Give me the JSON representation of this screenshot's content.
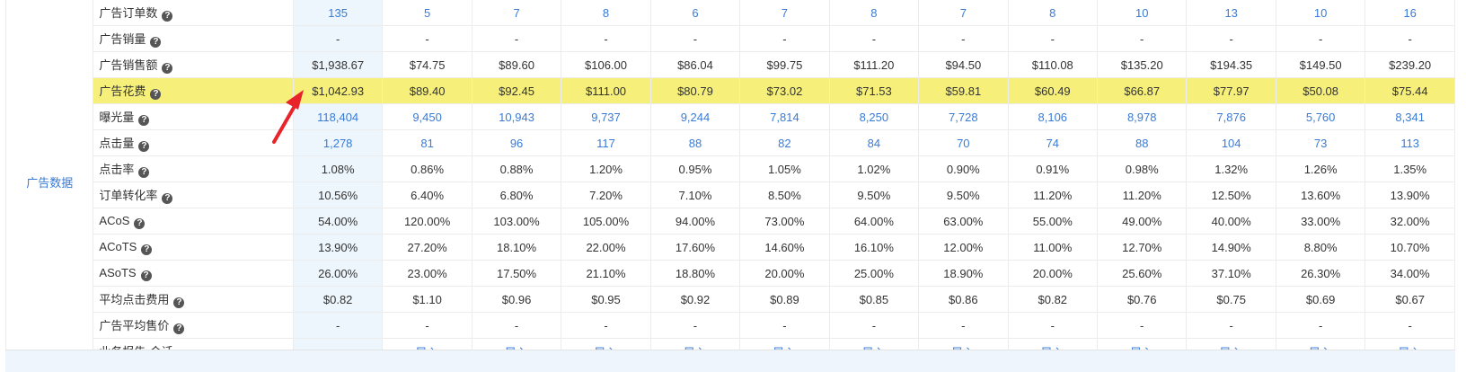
{
  "category": "广告数据",
  "rows": [
    {
      "label": "广告订单数",
      "style": "blue",
      "values": [
        "135",
        "5",
        "7",
        "8",
        "6",
        "7",
        "8",
        "7",
        "8",
        "10",
        "13",
        "10",
        "16"
      ]
    },
    {
      "label": "广告销量",
      "style": "plain",
      "values": [
        "-",
        "-",
        "-",
        "-",
        "-",
        "-",
        "-",
        "-",
        "-",
        "-",
        "-",
        "-",
        "-"
      ]
    },
    {
      "label": "广告销售额",
      "style": "plain",
      "values": [
        "$1,938.67",
        "$74.75",
        "$89.60",
        "$106.00",
        "$86.04",
        "$99.75",
        "$111.20",
        "$94.50",
        "$110.08",
        "$135.20",
        "$194.35",
        "$149.50",
        "$239.20"
      ]
    },
    {
      "label": "广告花费",
      "style": "highlight",
      "values": [
        "$1,042.93",
        "$89.40",
        "$92.45",
        "$111.00",
        "$80.79",
        "$73.02",
        "$71.53",
        "$59.81",
        "$60.49",
        "$66.87",
        "$77.97",
        "$50.08",
        "$75.44"
      ]
    },
    {
      "label": "曝光量",
      "style": "blue",
      "values": [
        "118,404",
        "9,450",
        "10,943",
        "9,737",
        "9,244",
        "7,814",
        "8,250",
        "7,728",
        "8,106",
        "8,978",
        "7,876",
        "5,760",
        "8,341"
      ]
    },
    {
      "label": "点击量",
      "style": "blue",
      "values": [
        "1,278",
        "81",
        "96",
        "117",
        "88",
        "82",
        "84",
        "70",
        "74",
        "88",
        "104",
        "73",
        "113"
      ]
    },
    {
      "label": "点击率",
      "style": "plain",
      "values": [
        "1.08%",
        "0.86%",
        "0.88%",
        "1.20%",
        "0.95%",
        "1.05%",
        "1.02%",
        "0.90%",
        "0.91%",
        "0.98%",
        "1.32%",
        "1.26%",
        "1.35%"
      ]
    },
    {
      "label": "订单转化率",
      "style": "plain",
      "values": [
        "10.56%",
        "6.40%",
        "6.80%",
        "7.20%",
        "7.10%",
        "8.50%",
        "9.50%",
        "9.50%",
        "11.20%",
        "11.20%",
        "12.50%",
        "13.60%",
        "13.90%"
      ]
    },
    {
      "label": "ACoS",
      "style": "plain",
      "values": [
        "54.00%",
        "120.00%",
        "103.00%",
        "105.00%",
        "94.00%",
        "73.00%",
        "64.00%",
        "63.00%",
        "55.00%",
        "49.00%",
        "40.00%",
        "33.00%",
        "32.00%"
      ]
    },
    {
      "label": "ACoTS",
      "style": "plain",
      "values": [
        "13.90%",
        "27.20%",
        "18.10%",
        "22.00%",
        "17.60%",
        "14.60%",
        "16.10%",
        "12.00%",
        "11.00%",
        "12.70%",
        "14.90%",
        "8.80%",
        "10.70%"
      ]
    },
    {
      "label": "ASoTS",
      "style": "plain",
      "values": [
        "26.00%",
        "23.00%",
        "17.50%",
        "21.10%",
        "18.80%",
        "20.00%",
        "25.00%",
        "18.90%",
        "20.00%",
        "25.60%",
        "37.10%",
        "26.30%",
        "34.00%"
      ]
    },
    {
      "label": "平均点击费用",
      "style": "plain",
      "values": [
        "$0.82",
        "$1.10",
        "$0.96",
        "$0.95",
        "$0.92",
        "$0.89",
        "$0.85",
        "$0.86",
        "$0.82",
        "$0.76",
        "$0.75",
        "$0.69",
        "$0.67"
      ]
    },
    {
      "label": "广告平均售价",
      "style": "plain",
      "values": [
        "-",
        "-",
        "-",
        "-",
        "-",
        "-",
        "-",
        "-",
        "-",
        "-",
        "-",
        "-",
        "-"
      ]
    },
    {
      "label": "业务报告-会话",
      "style": "import",
      "values": [
        "-",
        "导入",
        "导入",
        "导入",
        "导入",
        "导入",
        "导入",
        "导入",
        "导入",
        "导入",
        "导入",
        "导入",
        "导入"
      ]
    }
  ],
  "help_icon": "question-circle-icon",
  "colors": {
    "accent": "#3a7bd5",
    "highlight": "#f6f07a",
    "total_col_bg": "#eef6fd",
    "arrow": "#e8232a"
  }
}
